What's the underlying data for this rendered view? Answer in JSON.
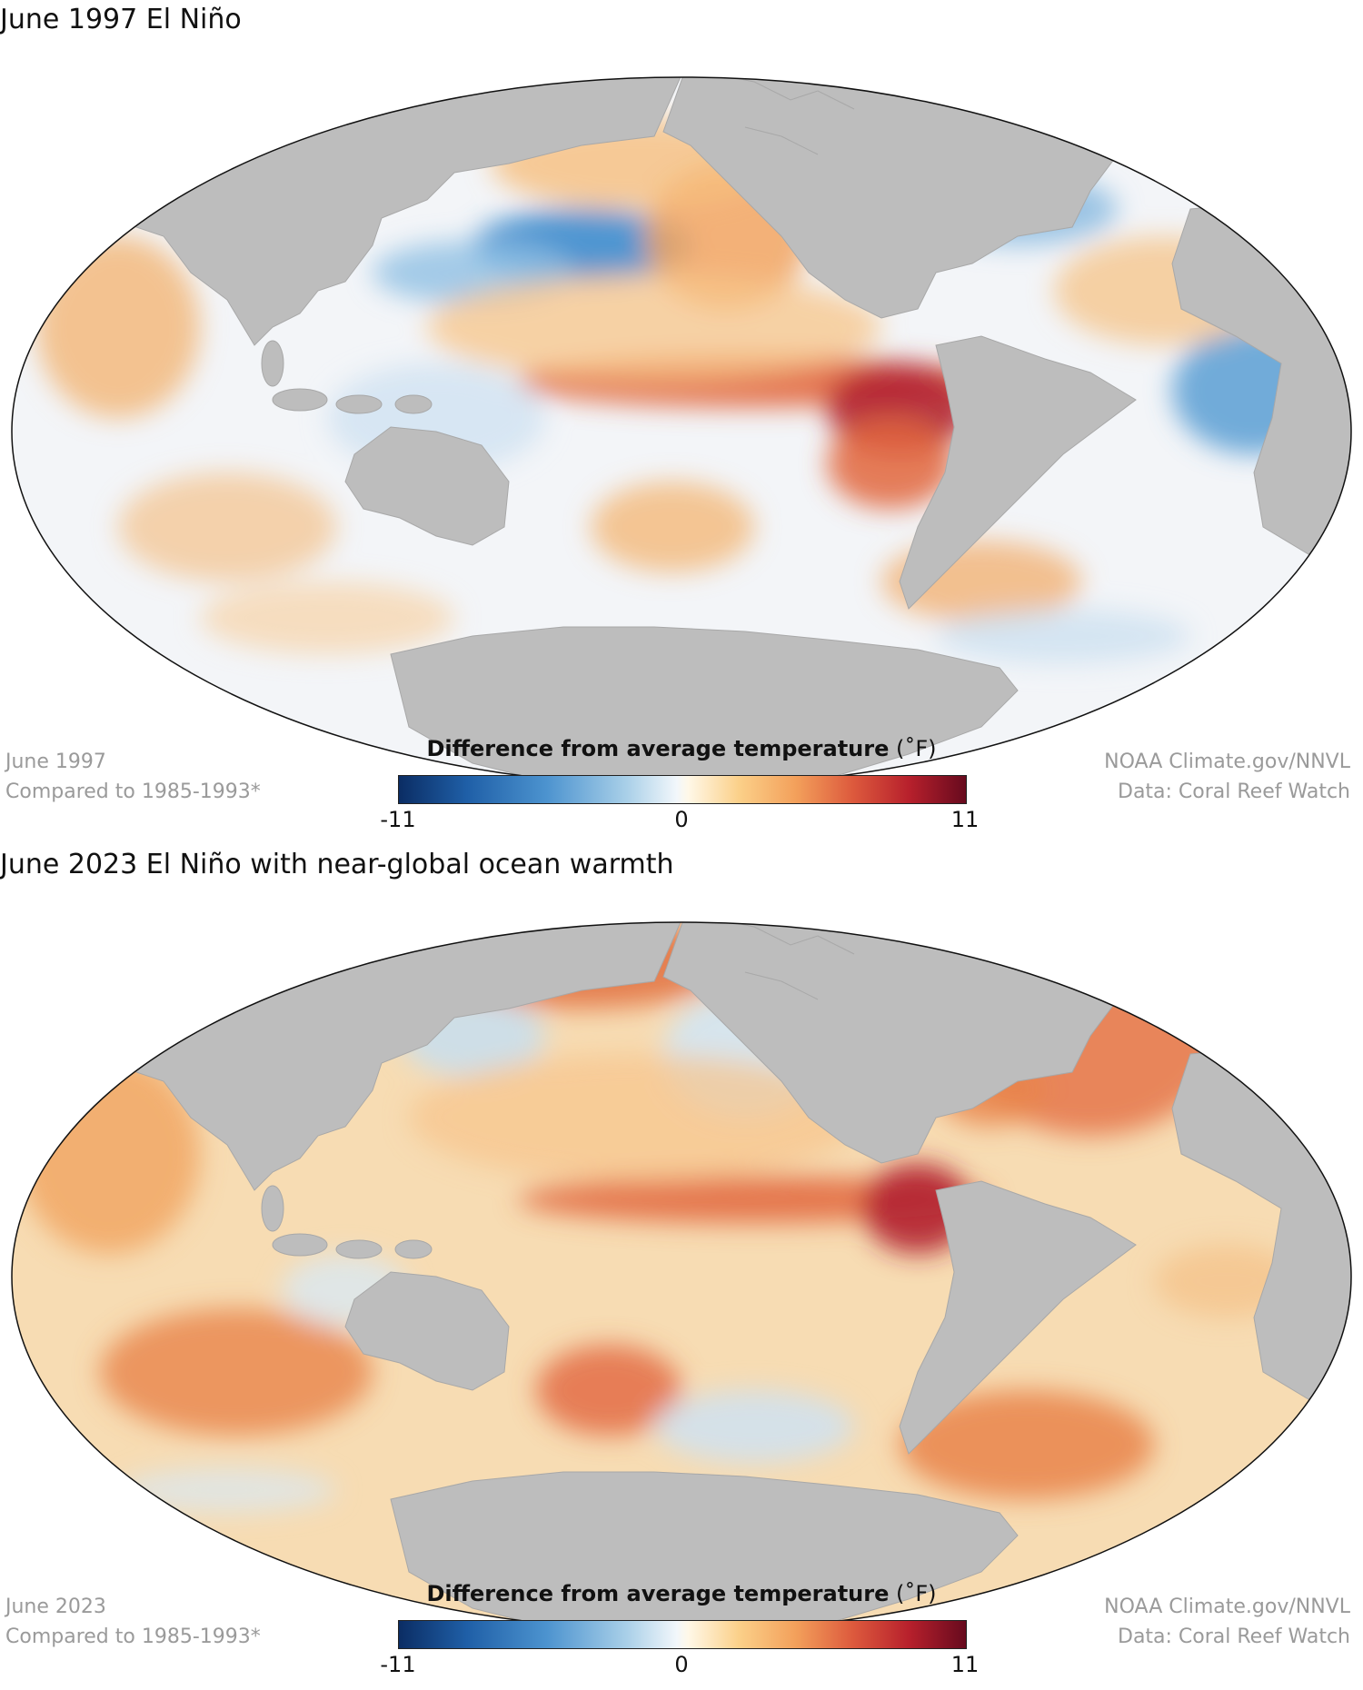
{
  "panels": [
    {
      "title": "June 1997 El Niño",
      "meta_left_1": "June 1997",
      "meta_left_2": "Compared to 1985-1993*",
      "meta_right_1": "NOAA Climate.gov/NNVL",
      "meta_right_2": "Data: Coral Reef Watch",
      "legend_title_bold": "Difference from average temperature",
      "legend_unit": "(˚F)",
      "ticks": [
        "-11",
        "0",
        "11"
      ]
    },
    {
      "title": "June 2023 El Niño with near-global ocean warmth",
      "meta_left_1": "June 2023",
      "meta_left_2": "Compared to 1985-1993*",
      "meta_right_1": "NOAA Climate.gov/NNVL",
      "meta_right_2": "Data: Coral Reef Watch",
      "legend_title_bold": "Difference from average temperature",
      "legend_unit": "(˚F)",
      "ticks": [
        "-11",
        "0",
        "11"
      ]
    }
  ],
  "colors": {
    "land": "#bdbdbd",
    "ocean_neutral": "#f4efe8",
    "cold": "#4c93cf",
    "warm": "#f3a05b",
    "hot": "#b7202c"
  }
}
